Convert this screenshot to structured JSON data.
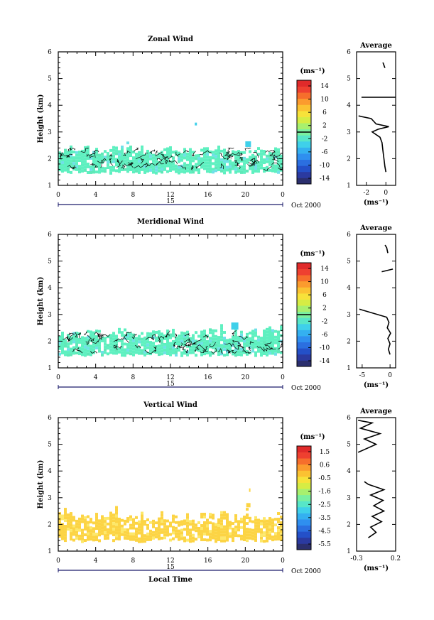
{
  "figure": {
    "xlabel": "Local Time",
    "date_label": "Oct 2000",
    "day_label": "15"
  },
  "colors": {
    "ramp": [
      "#2b2f6e",
      "#2b3aa0",
      "#2450c8",
      "#2b6fe0",
      "#2f8fef",
      "#34b0f0",
      "#3fd0ea",
      "#57e6c8",
      "#7af0a0",
      "#a8f06e",
      "#d6ec44",
      "#f7e23a",
      "#fbc232",
      "#fb9b2e",
      "#f66e2c",
      "#ee4030",
      "#e02a2a"
    ],
    "cyan_fill": "#5ef0c0",
    "yellow_fill": "#fcd444",
    "contour": "#000000"
  },
  "chart_data": [
    {
      "type": "heatmap",
      "title": "Zonal Wind",
      "ylabel": "Height (km)",
      "xlim": [
        0,
        24
      ],
      "ylim": [
        1,
        6
      ],
      "x_ticks": [
        "0",
        "4",
        "8",
        "12",
        "16",
        "20",
        "0"
      ],
      "y_ticks": [
        "1",
        "2",
        "3",
        "4",
        "5",
        "6"
      ],
      "colorbar": {
        "unit": "(ms⁻¹)",
        "range": [
          -16,
          16
        ],
        "tick_labels": [
          "14",
          "10",
          "6",
          "2",
          "-2",
          "-6",
          "-10",
          "-14"
        ],
        "zero_line": 0
      },
      "data_band_km": [
        1.5,
        2.5
      ],
      "average": {
        "title": "Average",
        "xlabel": "(ms⁻¹)",
        "xlim": [
          -3,
          1
        ],
        "x_ticks": [
          "-2",
          "0"
        ],
        "profile": [
          [
            0.0,
            1.5
          ],
          [
            -0.1,
            1.7
          ],
          [
            -0.2,
            2.0
          ],
          [
            -0.3,
            2.3
          ],
          [
            -0.4,
            2.6
          ],
          [
            -0.6,
            2.8
          ],
          [
            -1.4,
            3.0
          ],
          [
            -0.8,
            3.1
          ],
          [
            0.3,
            3.2
          ],
          [
            -1.0,
            3.3
          ],
          [
            -1.5,
            3.5
          ],
          [
            -2.8,
            3.6
          ]
        ],
        "profile_upper": [
          [
            -2.5,
            4.3
          ],
          [
            1.0,
            4.3
          ]
        ],
        "profile_top": [
          [
            -0.3,
            5.6
          ],
          [
            -0.2,
            5.5
          ],
          [
            -0.1,
            5.4
          ]
        ]
      }
    },
    {
      "type": "heatmap",
      "title": "Meridional Wind",
      "ylabel": "Height (km)",
      "xlim": [
        0,
        24
      ],
      "ylim": [
        1,
        6
      ],
      "x_ticks": [
        "0",
        "4",
        "8",
        "12",
        "16",
        "20",
        "0"
      ],
      "y_ticks": [
        "1",
        "2",
        "3",
        "4",
        "5",
        "6"
      ],
      "colorbar": {
        "unit": "(ms⁻¹)",
        "range": [
          -16,
          16
        ],
        "tick_labels": [
          "14",
          "10",
          "6",
          "2",
          "-2",
          "-6",
          "-10",
          "-14"
        ],
        "zero_line": 0
      },
      "data_band_km": [
        1.5,
        2.5
      ],
      "average": {
        "title": "Average",
        "xlabel": "(ms⁻¹)",
        "xlim": [
          -6,
          1
        ],
        "x_ticks": [
          "-5",
          "0"
        ],
        "profile": [
          [
            0.0,
            1.5
          ],
          [
            -0.3,
            1.7
          ],
          [
            0.0,
            1.9
          ],
          [
            -0.4,
            2.1
          ],
          [
            0.1,
            2.3
          ],
          [
            -0.5,
            2.5
          ],
          [
            -0.2,
            2.7
          ],
          [
            -0.6,
            2.9
          ],
          [
            -5.5,
            3.2
          ]
        ],
        "profile_upper": [
          [
            -1.5,
            4.6
          ],
          [
            0.5,
            4.7
          ]
        ],
        "profile_top": [
          [
            -0.9,
            5.6
          ],
          [
            -0.6,
            5.5
          ],
          [
            -0.4,
            5.3
          ]
        ]
      }
    },
    {
      "type": "heatmap",
      "title": "Vertical Wind",
      "ylabel": "Height (km)",
      "xlim": [
        0,
        24
      ],
      "ylim": [
        1,
        6
      ],
      "x_ticks": [
        "0",
        "4",
        "8",
        "12",
        "16",
        "20",
        "0"
      ],
      "y_ticks": [
        "1",
        "2",
        "3",
        "4",
        "5",
        "6"
      ],
      "colorbar": {
        "unit": "(ms⁻¹)",
        "range": [
          -6.0,
          2.0
        ],
        "tick_labels": [
          "1.5",
          "0.6",
          "-0.5",
          "-1.6",
          "-2.5",
          "-3.5",
          "-4.5",
          "-5.5"
        ],
        "zero_line": null
      },
      "data_band_km": [
        1.4,
        2.5
      ],
      "average": {
        "title": "Average",
        "xlabel": "(ms⁻¹)",
        "xlim": [
          -0.3,
          0.2
        ],
        "x_ticks": [
          "-0.3",
          "0.2"
        ],
        "profile": [
          [
            -0.15,
            1.5
          ],
          [
            -0.05,
            1.7
          ],
          [
            -0.12,
            1.9
          ],
          [
            0.02,
            2.1
          ],
          [
            -0.1,
            2.3
          ],
          [
            0.05,
            2.5
          ],
          [
            -0.08,
            2.7
          ],
          [
            0.04,
            2.9
          ],
          [
            -0.12,
            3.1
          ],
          [
            0.05,
            3.3
          ],
          [
            -0.15,
            3.5
          ],
          [
            -0.2,
            3.6
          ]
        ],
        "profile_upper": [
          [
            -0.28,
            4.7
          ],
          [
            -0.05,
            5.0
          ],
          [
            -0.2,
            5.2
          ],
          [
            0.0,
            5.4
          ],
          [
            -0.25,
            5.6
          ],
          [
            -0.1,
            5.8
          ],
          [
            -0.28,
            5.9
          ]
        ],
        "profile_top": []
      }
    }
  ]
}
